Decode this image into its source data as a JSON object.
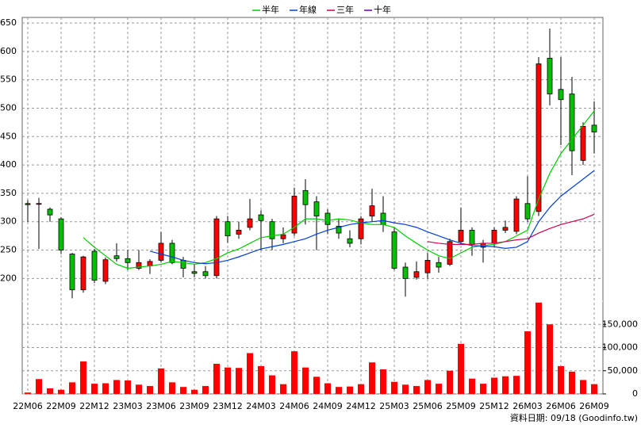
{
  "chart_data": {
    "type": "candlestick",
    "categories": [
      "22M06",
      null,
      null,
      "22M09",
      null,
      null,
      "22M12",
      null,
      null,
      "23M03",
      null,
      null,
      "23M06",
      null,
      null,
      "23M09",
      null,
      null,
      "23M12",
      null,
      null,
      "24M03",
      null,
      null,
      "24M06",
      null,
      null,
      "24M09",
      null,
      null,
      "24M12",
      null,
      null,
      "25M03",
      null,
      null,
      "25M06",
      null,
      null,
      "25M09",
      null,
      null,
      "25M12",
      null,
      null,
      "26M03",
      null,
      null,
      "26M06",
      null,
      null,
      "26M09"
    ],
    "open": [
      330,
      332,
      322,
      305,
      243,
      180,
      248,
      195,
      240,
      235,
      218,
      222,
      232,
      262,
      232,
      212,
      212,
      205,
      300,
      278,
      290,
      312,
      300,
      270,
      280,
      355,
      335,
      315,
      292,
      270,
      270,
      310,
      315,
      282,
      220,
      202,
      210,
      228,
      225,
      265,
      285,
      255,
      262,
      285,
      283,
      332,
      318,
      588,
      533,
      525,
      408,
      470
    ],
    "high": [
      338,
      342,
      325,
      308,
      245,
      240,
      252,
      237,
      262,
      250,
      250,
      234,
      282,
      268,
      238,
      225,
      222,
      310,
      310,
      300,
      340,
      320,
      305,
      290,
      360,
      375,
      345,
      322,
      305,
      285,
      310,
      358,
      345,
      290,
      228,
      230,
      245,
      238,
      270,
      325,
      290,
      268,
      290,
      302,
      345,
      380,
      590,
      640,
      590,
      555,
      475,
      512
    ],
    "low": [
      300,
      252,
      300,
      243,
      165,
      175,
      192,
      190,
      230,
      215,
      215,
      208,
      228,
      225,
      202,
      202,
      200,
      200,
      263,
      270,
      285,
      250,
      250,
      262,
      275,
      295,
      250,
      278,
      270,
      255,
      260,
      300,
      282,
      215,
      168,
      198,
      200,
      210,
      222,
      260,
      240,
      228,
      255,
      280,
      278,
      300,
      310,
      505,
      435,
      382,
      400,
      420
    ],
    "close": [
      332,
      332,
      312,
      250,
      180,
      238,
      197,
      233,
      235,
      228,
      228,
      230,
      262,
      228,
      218,
      209,
      205,
      305,
      275,
      285,
      305,
      302,
      270,
      277,
      345,
      330,
      310,
      295,
      280,
      262,
      305,
      328,
      295,
      218,
      200,
      212,
      232,
      220,
      265,
      285,
      260,
      262,
      285,
      290,
      340,
      305,
      578,
      525,
      515,
      425,
      468,
      458
    ],
    "up_color": "#ff0000",
    "down_color": "#00c000",
    "ylim": [
      160,
      650
    ],
    "yticks": [
      200,
      250,
      300,
      350,
      400,
      450,
      500,
      550,
      600,
      650
    ],
    "series": [
      {
        "name": "半年",
        "color": "#00cc00",
        "values": [
          null,
          null,
          null,
          null,
          null,
          272,
          255,
          240,
          225,
          218,
          220,
          222,
          225,
          230,
          228,
          225,
          228,
          235,
          245,
          252,
          262,
          272,
          275,
          278,
          290,
          305,
          305,
          302,
          305,
          303,
          298,
          295,
          295,
          290,
          275,
          262,
          250,
          240,
          235,
          245,
          255,
          258,
          260,
          265,
          275,
          285,
          340,
          385,
          420,
          445,
          470,
          495
        ]
      },
      {
        "name": "年線",
        "color": "#0040d0",
        "values": [
          null,
          null,
          null,
          null,
          null,
          null,
          null,
          null,
          null,
          null,
          null,
          248,
          243,
          238,
          232,
          228,
          226,
          228,
          232,
          238,
          245,
          252,
          256,
          260,
          265,
          270,
          278,
          285,
          290,
          295,
          298,
          300,
          302,
          298,
          295,
          290,
          282,
          275,
          268,
          262,
          258,
          257,
          256,
          253,
          255,
          265,
          300,
          325,
          345,
          360,
          375,
          390
        ]
      },
      {
        "name": "三年",
        "color": "#d00050",
        "values": [
          null,
          null,
          null,
          null,
          null,
          null,
          null,
          null,
          null,
          null,
          null,
          null,
          null,
          null,
          null,
          null,
          null,
          null,
          null,
          null,
          null,
          null,
          null,
          null,
          null,
          null,
          null,
          null,
          null,
          null,
          null,
          null,
          null,
          null,
          null,
          null,
          265,
          262,
          260,
          260,
          260,
          262,
          262,
          265,
          268,
          270,
          280,
          288,
          295,
          300,
          305,
          313
        ]
      },
      {
        "name": "十年",
        "color": "#660099",
        "values": [
          null,
          null,
          null,
          null,
          null,
          null,
          null,
          null,
          null,
          null,
          null,
          null,
          null,
          null,
          null,
          null,
          null,
          null,
          null,
          null,
          null,
          null,
          null,
          null,
          null,
          null,
          null,
          null,
          null,
          null,
          null,
          null,
          null,
          null,
          null,
          null,
          null,
          null,
          null,
          null,
          null,
          null,
          null,
          null,
          null,
          null,
          null,
          null,
          null,
          null,
          null,
          null
        ]
      }
    ],
    "volume": {
      "color": "#ff0000",
      "values": [
        3000,
        32000,
        12000,
        9000,
        25000,
        70000,
        22000,
        23000,
        30000,
        29000,
        20000,
        17000,
        55000,
        25000,
        15000,
        9000,
        17000,
        65000,
        57000,
        56000,
        88000,
        60000,
        40000,
        21000,
        92000,
        57000,
        37000,
        23000,
        15000,
        16000,
        21000,
        68000,
        53000,
        26000,
        20000,
        17000,
        30000,
        22000,
        50000,
        108000,
        33000,
        22000,
        35000,
        38000,
        39000,
        135000,
        197000,
        150000,
        60000,
        48000,
        30000,
        21000
      ],
      "ylim": [
        0,
        200000
      ],
      "yticks": [
        0,
        {
          "value": 50000,
          "label": "50,000"
        },
        {
          "value": 100000,
          "label": "100,000"
        },
        {
          "value": 150000,
          "label": "150,000"
        }
      ]
    },
    "footnote": "資料日期: 09/18 (Goodinfo.tw)"
  }
}
